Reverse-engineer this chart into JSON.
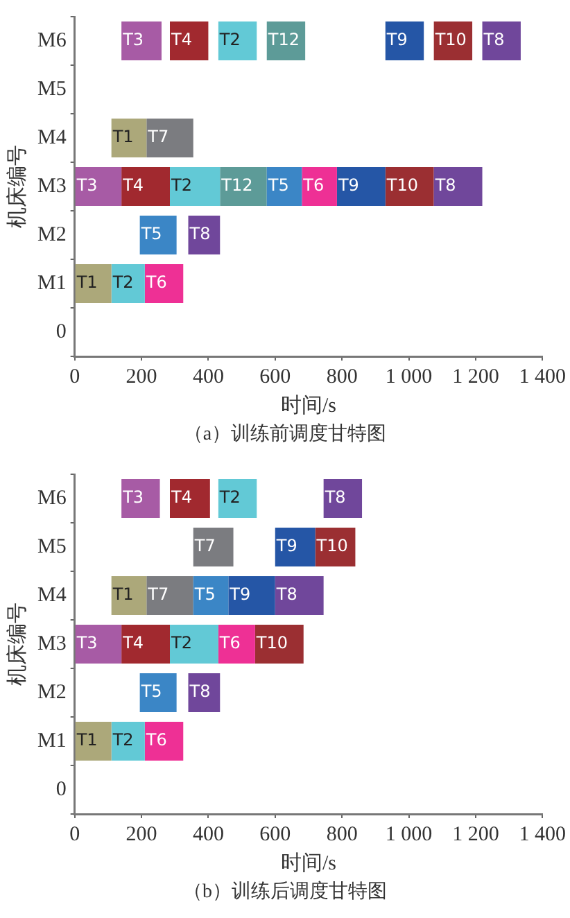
{
  "chart_data": [
    {
      "type": "bar",
      "orientation": "horizontal",
      "title": "（a）训练前调度甘特图",
      "xlabel": "时间/s",
      "ylabel": "机床编号",
      "categories": [
        "M6",
        "M5",
        "M4",
        "M3",
        "M2",
        "M1",
        "0"
      ],
      "xlim": [
        0,
        1400
      ],
      "xticks": [
        0,
        200,
        400,
        600,
        800,
        {
          "value": 1000,
          "label": "1 000"
        },
        {
          "value": 1200,
          "label": "1 200"
        },
        {
          "value": 1400,
          "label": "1 400"
        }
      ],
      "series": [
        {
          "name": "T1",
          "color": "#aca87a",
          "values": [
            null,
            null,
            105,
            null,
            null,
            110,
            null
          ],
          "base": [
            null,
            null,
            110,
            null,
            null,
            0,
            null
          ]
        },
        {
          "name": "T2",
          "color": "#62c9d6",
          "values": [
            115,
            null,
            null,
            150,
            null,
            100,
            null
          ],
          "base": [
            430,
            null,
            null,
            285,
            null,
            110,
            null
          ]
        },
        {
          "name": "T3",
          "color": "#a75ba5",
          "values": [
            120,
            null,
            null,
            140,
            null,
            null,
            null
          ],
          "base": [
            140,
            null,
            null,
            0,
            null,
            null,
            null
          ]
        },
        {
          "name": "T4",
          "color": "#a1292f",
          "values": [
            115,
            null,
            null,
            145,
            null,
            null,
            null
          ],
          "base": [
            285,
            null,
            null,
            140,
            null,
            null,
            null
          ]
        },
        {
          "name": "T5",
          "color": "#3b86c6",
          "values": [
            null,
            null,
            null,
            105,
            110,
            null,
            null
          ],
          "base": [
            null,
            null,
            null,
            575,
            195,
            null,
            null
          ]
        },
        {
          "name": "T6",
          "color": "#ee3095",
          "values": [
            null,
            null,
            null,
            105,
            null,
            115,
            null
          ],
          "base": [
            null,
            null,
            null,
            680,
            null,
            210,
            null
          ]
        },
        {
          "name": "T7",
          "color": "#7b7c80",
          "values": [
            null,
            null,
            140,
            null,
            null,
            null,
            null
          ],
          "base": [
            null,
            null,
            215,
            null,
            null,
            null,
            null
          ]
        },
        {
          "name": "T8",
          "color": "#70479b",
          "values": [
            115,
            null,
            null,
            145,
            95,
            null,
            null
          ],
          "base": [
            1220,
            null,
            null,
            1075,
            340,
            null,
            null
          ]
        },
        {
          "name": "T9",
          "color": "#2556a6",
          "values": [
            115,
            null,
            null,
            145,
            null,
            null,
            null
          ],
          "base": [
            930,
            null,
            null,
            785,
            null,
            null,
            null
          ]
        },
        {
          "name": "T10",
          "color": "#9b2f32",
          "values": [
            115,
            null,
            null,
            145,
            null,
            null,
            null
          ],
          "base": [
            1075,
            null,
            null,
            930,
            null,
            null,
            null
          ]
        },
        {
          "name": "T12",
          "color": "#5d9b98",
          "values": [
            115,
            null,
            null,
            140,
            null,
            null,
            null
          ],
          "base": [
            575,
            null,
            null,
            435,
            null,
            null,
            null
          ]
        }
      ]
    },
    {
      "type": "bar",
      "orientation": "horizontal",
      "title": "（b）训练后调度甘特图",
      "xlabel": "时间/s",
      "ylabel": "机床编号",
      "categories": [
        "M6",
        "M5",
        "M4",
        "M3",
        "M2",
        "M1",
        "0"
      ],
      "xlim": [
        0,
        1400
      ],
      "xticks": [
        0,
        200,
        400,
        600,
        800,
        {
          "value": 1000,
          "label": "1 000"
        },
        {
          "value": 1200,
          "label": "1 200"
        },
        {
          "value": 1400,
          "label": "1 400"
        }
      ],
      "series": [
        {
          "name": "T1",
          "color": "#aca87a",
          "values": [
            null,
            null,
            105,
            null,
            null,
            110,
            null
          ],
          "base": [
            null,
            null,
            110,
            null,
            null,
            0,
            null
          ]
        },
        {
          "name": "T2",
          "color": "#62c9d6",
          "values": [
            115,
            null,
            null,
            145,
            null,
            100,
            null
          ],
          "base": [
            430,
            null,
            null,
            285,
            null,
            110,
            null
          ]
        },
        {
          "name": "T3",
          "color": "#a75ba5",
          "values": [
            115,
            null,
            null,
            140,
            null,
            null,
            null
          ],
          "base": [
            140,
            null,
            null,
            0,
            null,
            null,
            null
          ]
        },
        {
          "name": "T4",
          "color": "#a1292f",
          "values": [
            120,
            null,
            null,
            145,
            null,
            null,
            null
          ],
          "base": [
            285,
            null,
            null,
            140,
            null,
            null,
            null
          ]
        },
        {
          "name": "T5",
          "color": "#3b86c6",
          "values": [
            null,
            null,
            105,
            null,
            110,
            null,
            null
          ],
          "base": [
            null,
            null,
            355,
            null,
            195,
            null,
            null
          ]
        },
        {
          "name": "T6",
          "color": "#ee3095",
          "values": [
            null,
            null,
            null,
            110,
            null,
            115,
            null
          ],
          "base": [
            null,
            null,
            null,
            430,
            null,
            210,
            null
          ]
        },
        {
          "name": "T7",
          "color": "#7b7c80",
          "values": [
            null,
            120,
            140,
            null,
            null,
            null,
            null
          ],
          "base": [
            null,
            355,
            215,
            null,
            null,
            null,
            null
          ]
        },
        {
          "name": "T8",
          "color": "#70479b",
          "values": [
            115,
            null,
            145,
            null,
            95,
            null,
            null
          ],
          "base": [
            745,
            null,
            600,
            null,
            340,
            null,
            null
          ]
        },
        {
          "name": "T9",
          "color": "#2556a6",
          "values": [
            null,
            120,
            140,
            null,
            null,
            null,
            null
          ],
          "base": [
            null,
            600,
            460,
            null,
            null,
            null,
            null
          ]
        },
        {
          "name": "T10",
          "color": "#9b2f32",
          "values": [
            null,
            120,
            null,
            145,
            null,
            null,
            null
          ],
          "base": [
            null,
            720,
            null,
            540,
            null,
            null,
            null
          ]
        }
      ]
    }
  ]
}
